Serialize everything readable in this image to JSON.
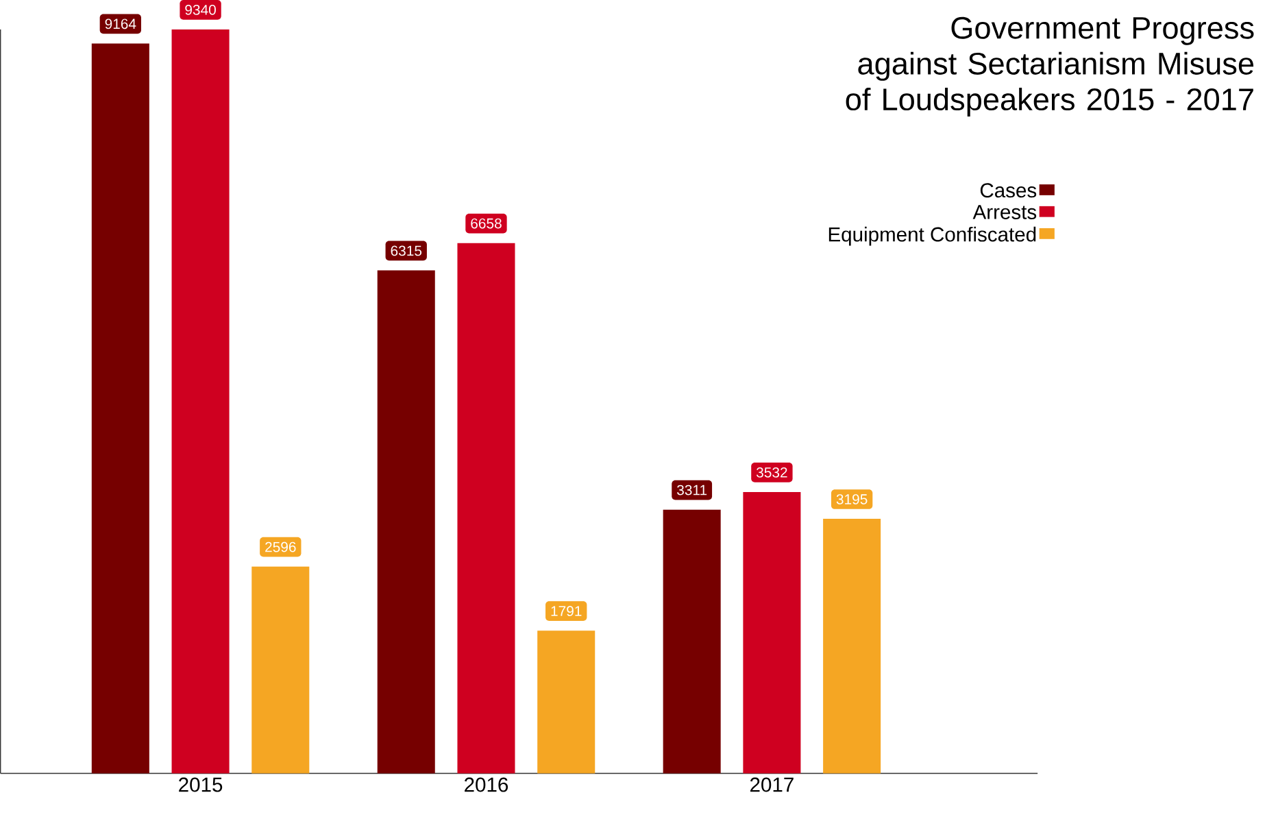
{
  "chart_data": {
    "type": "bar",
    "title": "Government Progress against Sectarianism Misuse of Loudspeakers 2015 - 2017",
    "categories": [
      "2015",
      "2016",
      "2017"
    ],
    "series": [
      {
        "name": "Cases",
        "color": "#760000",
        "values": [
          9164,
          6315,
          3311
        ]
      },
      {
        "name": "Arrests",
        "color": "#cf0020",
        "values": [
          9340,
          6658,
          3532
        ]
      },
      {
        "name": "Equipment Confiscated",
        "color": "#f5a623",
        "values": [
          2596,
          1791,
          3195
        ]
      }
    ],
    "data_labels": true,
    "legend": "top right",
    "tick_labels": "x"
  }
}
